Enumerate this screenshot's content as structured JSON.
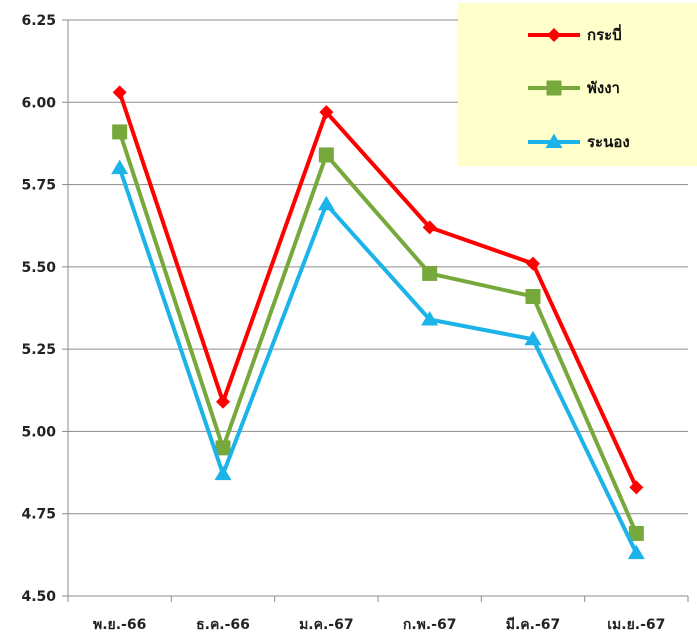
{
  "chart_data": {
    "type": "line",
    "categories": [
      "พ.ย.-66",
      "ธ.ค.-66",
      "ม.ค.-67",
      "ก.พ.-67",
      "มี.ค.-67",
      "เม.ย.-67"
    ],
    "series": [
      {
        "name": "กระบี่",
        "values": [
          6.03,
          5.09,
          5.97,
          5.62,
          5.51,
          4.83
        ],
        "color": "#ff0000",
        "marker": "diamond"
      },
      {
        "name": "พังงา",
        "values": [
          5.91,
          4.95,
          5.84,
          5.48,
          5.41,
          4.69
        ],
        "color": "#77a83b",
        "marker": "square"
      },
      {
        "name": "ระนอง",
        "values": [
          5.8,
          4.87,
          5.69,
          5.34,
          5.28,
          4.63
        ],
        "color": "#1cb4e8",
        "marker": "triangle"
      }
    ],
    "y_ticks": [
      "4.50",
      "4.75",
      "5.00",
      "5.25",
      "5.50",
      "5.75",
      "6.00",
      "6.25"
    ],
    "ylim": [
      4.5,
      6.25
    ],
    "grid": true,
    "legend": {
      "placement": "top-right",
      "background": "#ffffcc"
    },
    "title": "",
    "xlabel": "",
    "ylabel": ""
  }
}
